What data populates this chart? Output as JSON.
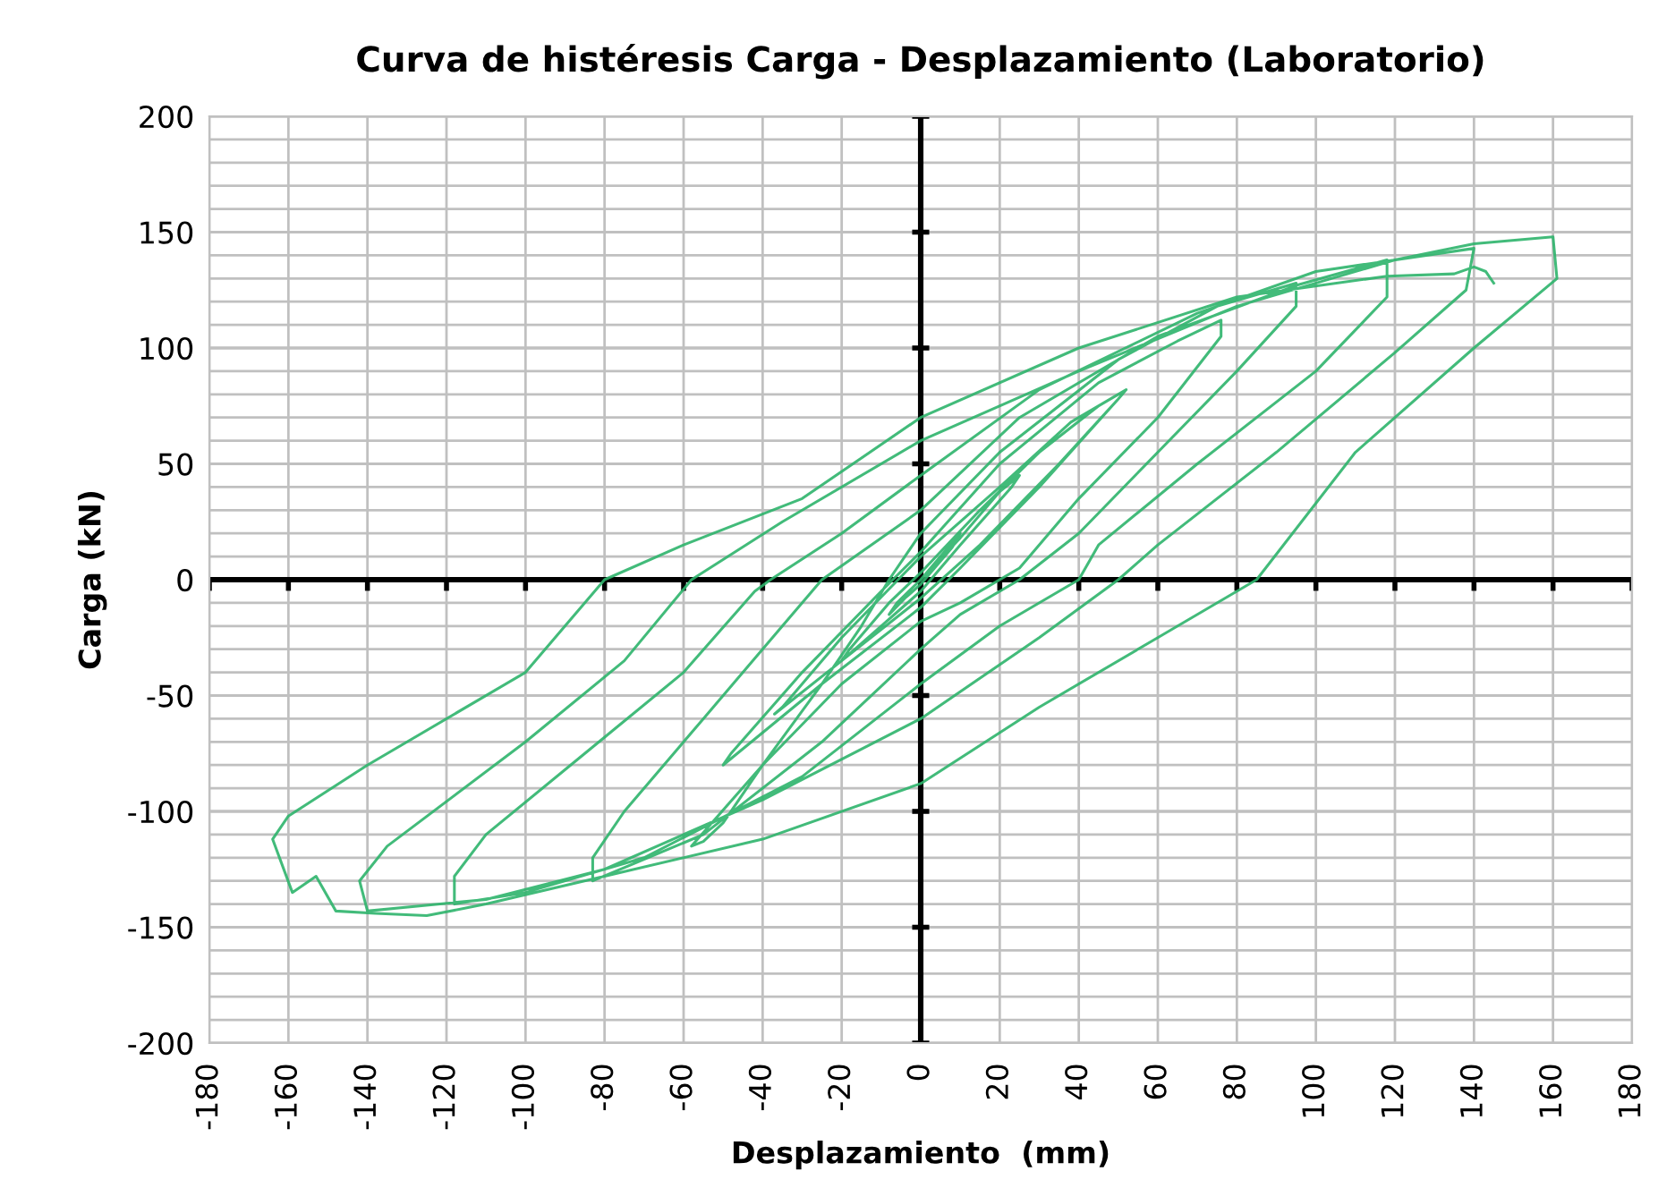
{
  "chart_data": {
    "type": "line",
    "title": "Curva de histéresis Carga - Desplazamiento (Laboratorio)",
    "xlabel": "Desplazamiento  (mm)",
    "ylabel": "Carga (kN)",
    "xlim": [
      -180,
      180
    ],
    "xticks": [
      -180,
      -160,
      -140,
      -120,
      -100,
      -80,
      -60,
      -40,
      -20,
      0,
      20,
      40,
      60,
      80,
      100,
      120,
      140,
      160,
      180
    ],
    "ylim": [
      -200,
      200
    ],
    "yticks": [
      -200,
      -150,
      -100,
      -50,
      0,
      50,
      100,
      150,
      200
    ],
    "grid": true,
    "marker": "none",
    "line_style": "solid",
    "series": [
      {
        "color": "#2db46c",
        "x": [
          0,
          5,
          10,
          8,
          2,
          0,
          -4,
          -8,
          -6,
          0,
          10,
          20,
          25,
          23,
          10,
          0,
          -10,
          -20,
          -18,
          -8,
          0,
          15,
          30,
          45,
          52,
          50,
          35,
          15,
          0,
          -20,
          -37,
          -35,
          -20,
          0,
          20,
          38,
          52,
          50,
          30,
          10,
          0,
          -25,
          -50,
          -48,
          -30,
          -10,
          0,
          20,
          45,
          65,
          76,
          76,
          60,
          40,
          25,
          10,
          0,
          -20,
          -40,
          -58,
          -55,
          -50,
          -40,
          -25,
          -15,
          -8,
          0,
          20,
          50,
          75,
          95,
          95,
          80,
          60,
          40,
          25,
          10,
          0,
          -25,
          -55,
          -83,
          -83,
          -75,
          -55,
          -35,
          -25,
          0,
          25,
          60,
          95,
          118,
          118,
          100,
          70,
          45,
          40,
          20,
          0,
          -30,
          -70,
          -100,
          -118,
          -118,
          -110,
          -85,
          -60,
          -42,
          -38,
          -20,
          0,
          30,
          70,
          100,
          140,
          138,
          120,
          90,
          60,
          50,
          30,
          0,
          -40,
          -80,
          -110,
          -140,
          -142,
          -135,
          -100,
          -75,
          -58,
          -35,
          0,
          40,
          80,
          120,
          140,
          160,
          161,
          140,
          110,
          85,
          60,
          30,
          0,
          -40,
          -80,
          -110,
          -125,
          -138,
          -148,
          -153,
          -159,
          -164,
          -160,
          -140,
          -100,
          -80,
          -60,
          -30,
          0,
          40,
          80,
          118,
          135,
          140,
          143,
          145
        ],
        "values": [
          0,
          10,
          20,
          14,
          2,
          -2,
          -8,
          -15,
          -10,
          0,
          18,
          38,
          45,
          40,
          15,
          -5,
          -20,
          -35,
          -30,
          -10,
          3,
          30,
          55,
          75,
          82,
          78,
          50,
          15,
          -8,
          -35,
          -58,
          -55,
          -25,
          10,
          40,
          68,
          82,
          78,
          40,
          5,
          -12,
          -45,
          -80,
          -75,
          -40,
          -5,
          12,
          50,
          85,
          103,
          112,
          105,
          70,
          35,
          5,
          -10,
          -18,
          -45,
          -80,
          -115,
          -113,
          -105,
          -80,
          -45,
          -20,
          0,
          20,
          55,
          95,
          118,
          128,
          118,
          90,
          55,
          20,
          0,
          -15,
          -30,
          -70,
          -110,
          -130,
          -120,
          -100,
          -60,
          -20,
          0,
          30,
          70,
          105,
          127,
          138,
          122,
          90,
          50,
          15,
          0,
          -20,
          -45,
          -85,
          -120,
          -135,
          -140,
          -128,
          -110,
          -75,
          -40,
          -5,
          0,
          20,
          45,
          82,
          115,
          133,
          143,
          125,
          98,
          55,
          15,
          0,
          -25,
          -60,
          -95,
          -125,
          -138,
          -143,
          -130,
          -115,
          -70,
          -35,
          0,
          25,
          60,
          90,
          118,
          138,
          145,
          148,
          130,
          100,
          55,
          0,
          -25,
          -55,
          -88,
          -112,
          -128,
          -140,
          -145,
          -144,
          -143,
          -128,
          -135,
          -112,
          -102,
          -80,
          -40,
          0,
          15,
          35,
          70,
          100,
          122,
          131,
          132,
          135,
          133,
          128
        ]
      }
    ]
  }
}
